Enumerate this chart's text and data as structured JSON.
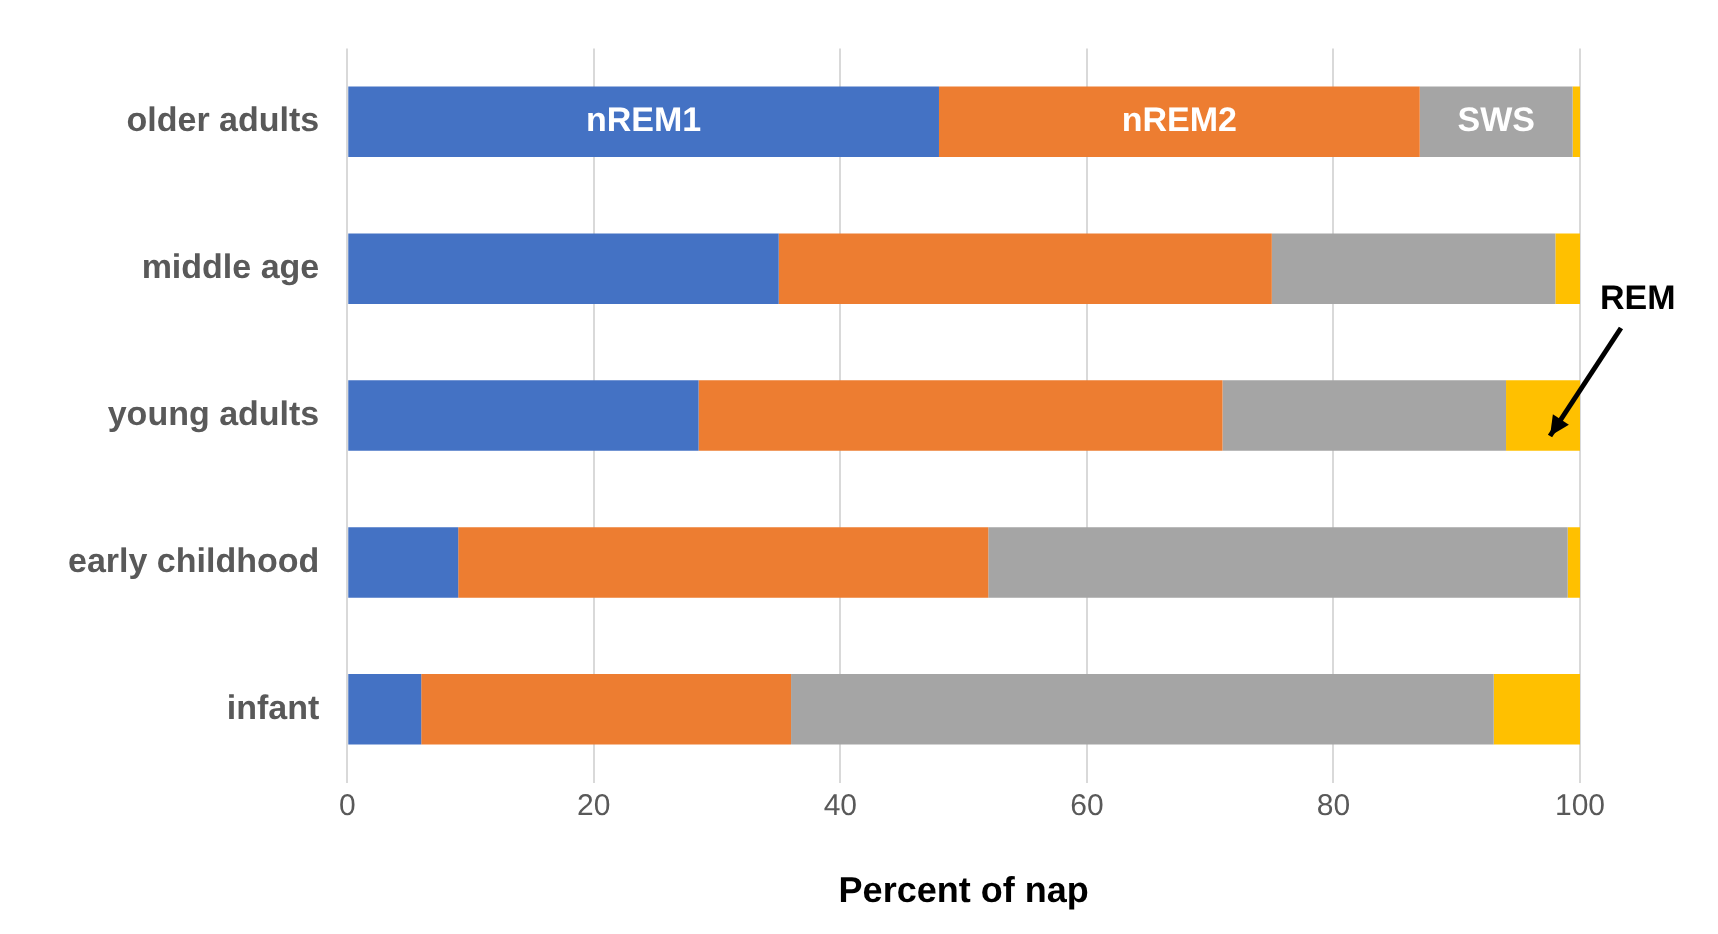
{
  "chart_data": {
    "type": "bar",
    "orientation": "horizontal",
    "stacked": true,
    "xlabel": "Percent of nap",
    "categories": [
      "older adults",
      "middle age",
      "young adults",
      "early childhood",
      "infant"
    ],
    "series": [
      {
        "name": "nREM1",
        "color": "#4472c4",
        "values": [
          48,
          35,
          28.5,
          9,
          6
        ]
      },
      {
        "name": "nREM2",
        "color": "#ed7d31",
        "values": [
          39,
          40,
          42.5,
          43,
          30
        ]
      },
      {
        "name": "SWS",
        "color": "#a5a5a5",
        "values": [
          12.4,
          23,
          23,
          47,
          57
        ]
      },
      {
        "name": "REM",
        "color": "#ffc000",
        "values": [
          0.6,
          2,
          6,
          1,
          7
        ]
      }
    ],
    "xlim": [
      0,
      100
    ],
    "xticks": [
      0,
      20,
      40,
      60,
      80,
      100
    ],
    "grid": "x",
    "legend": false
  }
}
